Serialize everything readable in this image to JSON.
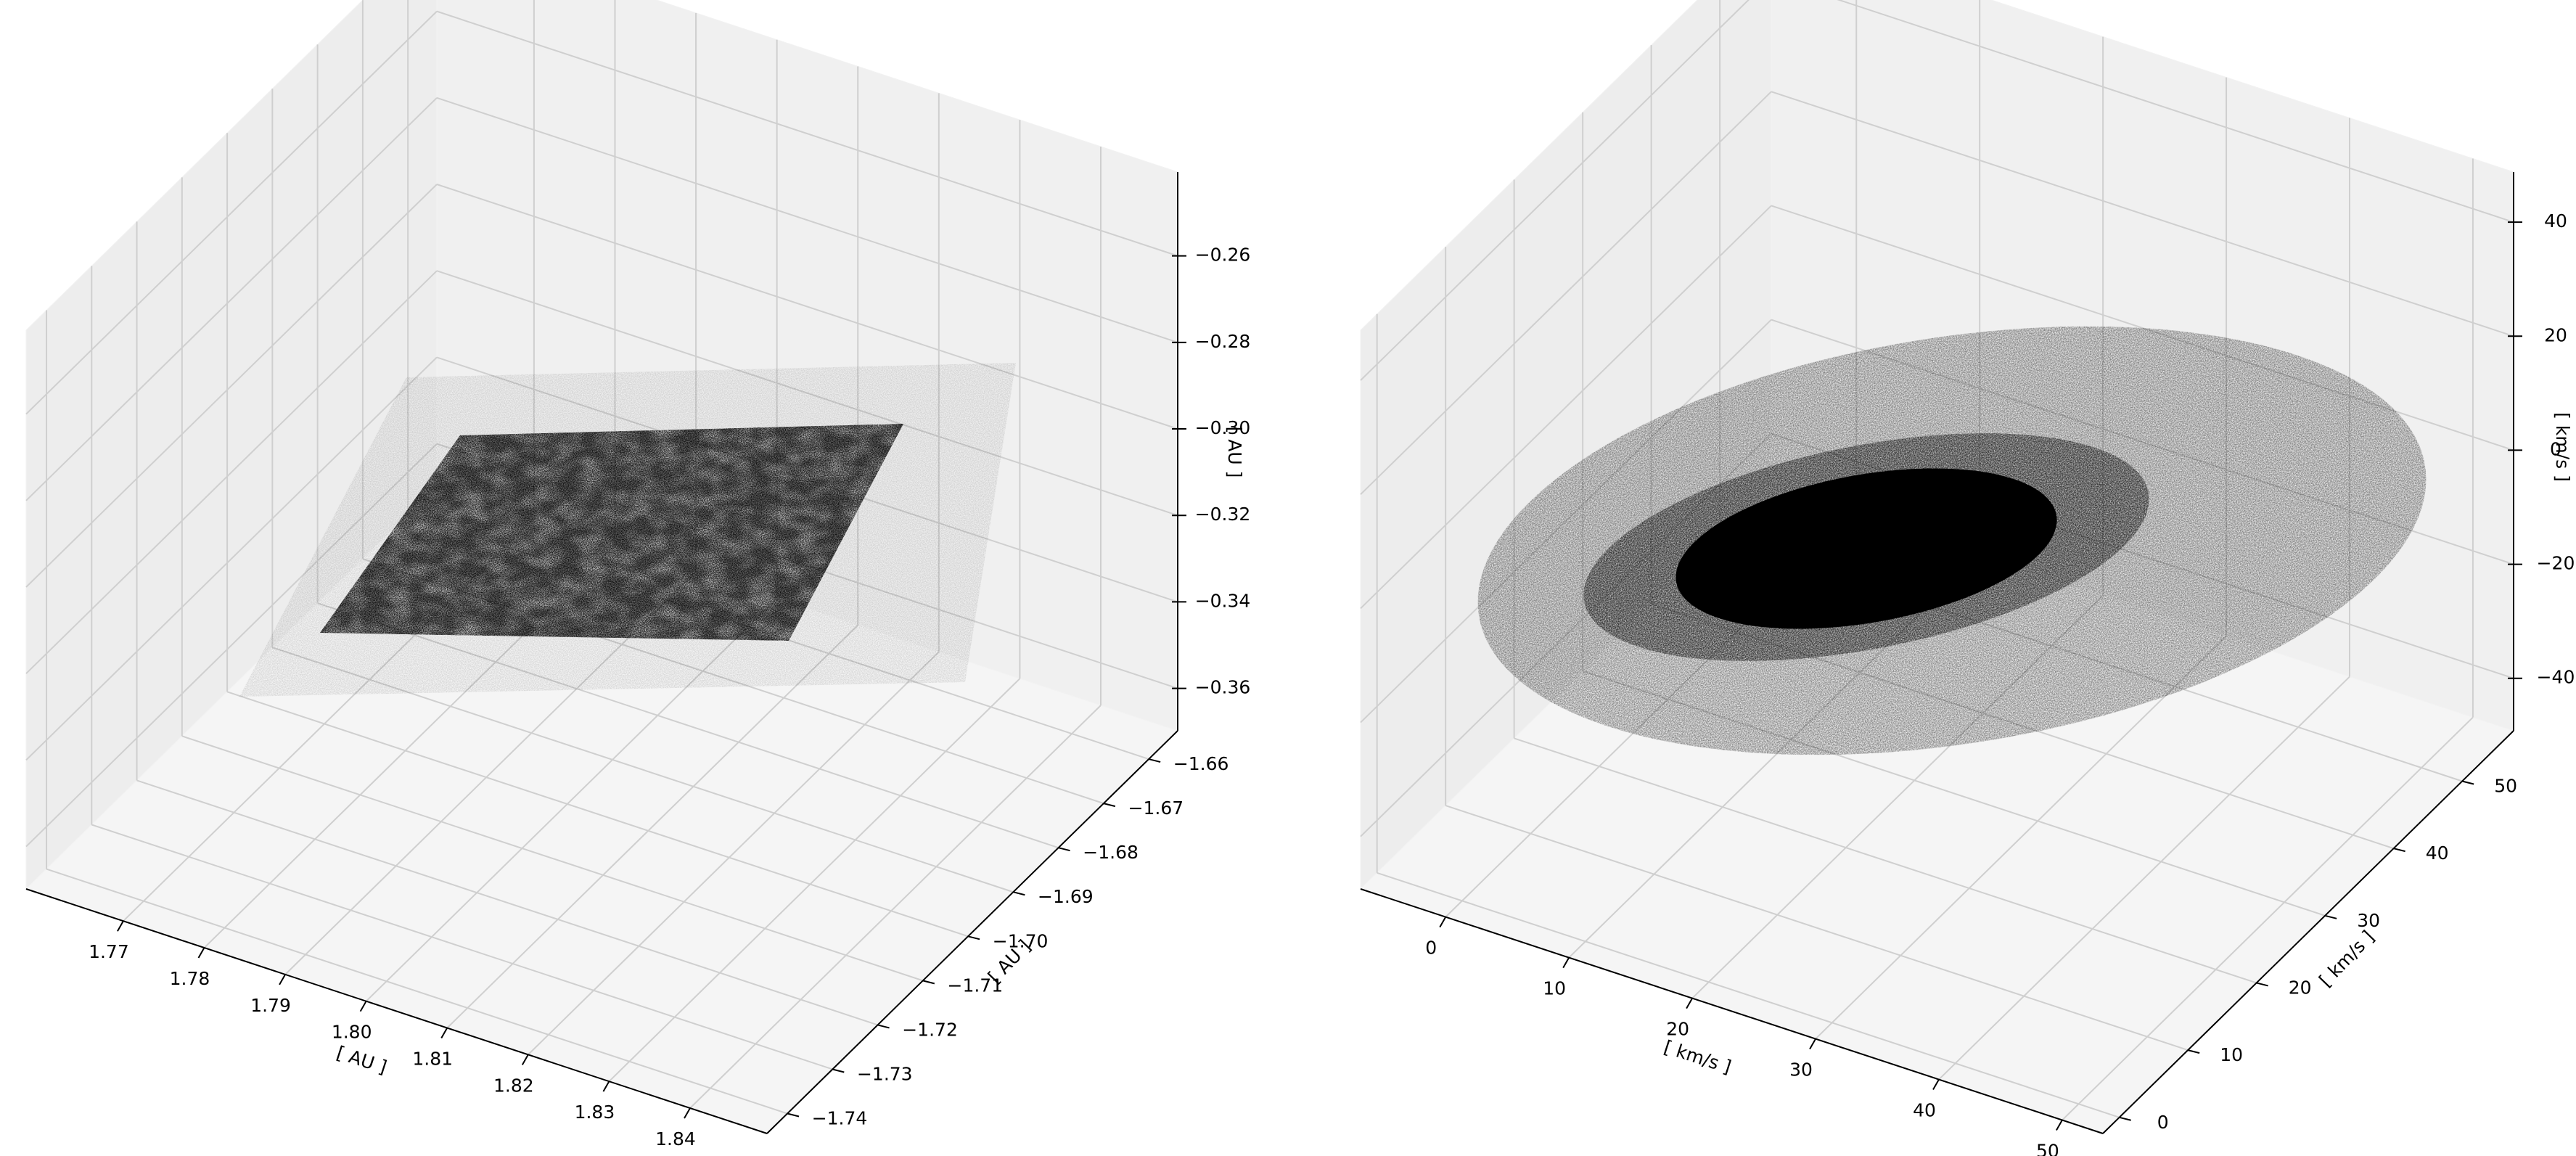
{
  "chart_data": [
    {
      "type": "scatter3d",
      "xlabel": "[ AU ]",
      "ylabel": "[ AU ]",
      "zlabel": "[ AU ]",
      "xlim": [
        1.758,
        1.8495
      ],
      "ylim": [
        -1.7445,
        -1.6536
      ],
      "zlim": [
        -0.3698,
        -0.2406
      ],
      "xticks": [
        1.77,
        1.78,
        1.79,
        {
          "value": 1.8,
          "label": "1.80"
        },
        1.81,
        1.82,
        1.83,
        1.84
      ],
      "yticks": [
        {
          "value": -1.74,
          "label": "−1.74"
        },
        {
          "value": -1.73,
          "label": "−1.73"
        },
        {
          "value": -1.72,
          "label": "−1.72"
        },
        {
          "value": -1.71,
          "label": "−1.71"
        },
        {
          "value": -1.7,
          "label": "−1.70"
        },
        {
          "value": -1.69,
          "label": "−1.69"
        },
        {
          "value": -1.68,
          "label": "−1.68"
        },
        {
          "value": -1.67,
          "label": "−1.67"
        },
        {
          "value": -1.66,
          "label": "−1.66"
        }
      ],
      "zticks": [
        {
          "value": -0.36,
          "label": "−0.36"
        },
        {
          "value": -0.34,
          "label": "−0.34"
        },
        {
          "value": -0.32,
          "label": "−0.32"
        },
        {
          "value": -0.3,
          "label": "−0.30"
        },
        {
          "value": -0.28,
          "label": "−0.28"
        },
        {
          "value": -0.26,
          "label": "−0.26"
        }
      ],
      "grid": true
    },
    {
      "type": "scatter3d",
      "xlabel": "[ km/s ]",
      "ylabel": "[ km/s ]",
      "zlabel": "[ km/s ]",
      "xlim": [
        -6.9,
        53.3
      ],
      "ylim": [
        -2.4,
        57.5
      ],
      "zlim": [
        -49.2,
        48.8
      ],
      "xticks": [
        0,
        10,
        20,
        30,
        40,
        50
      ],
      "yticks": [
        0,
        10,
        20,
        30,
        40,
        50
      ],
      "zticks": [
        {
          "value": -40,
          "label": "−40"
        },
        {
          "value": -20,
          "label": "−20"
        },
        0,
        20,
        40
      ],
      "grid": true
    }
  ]
}
